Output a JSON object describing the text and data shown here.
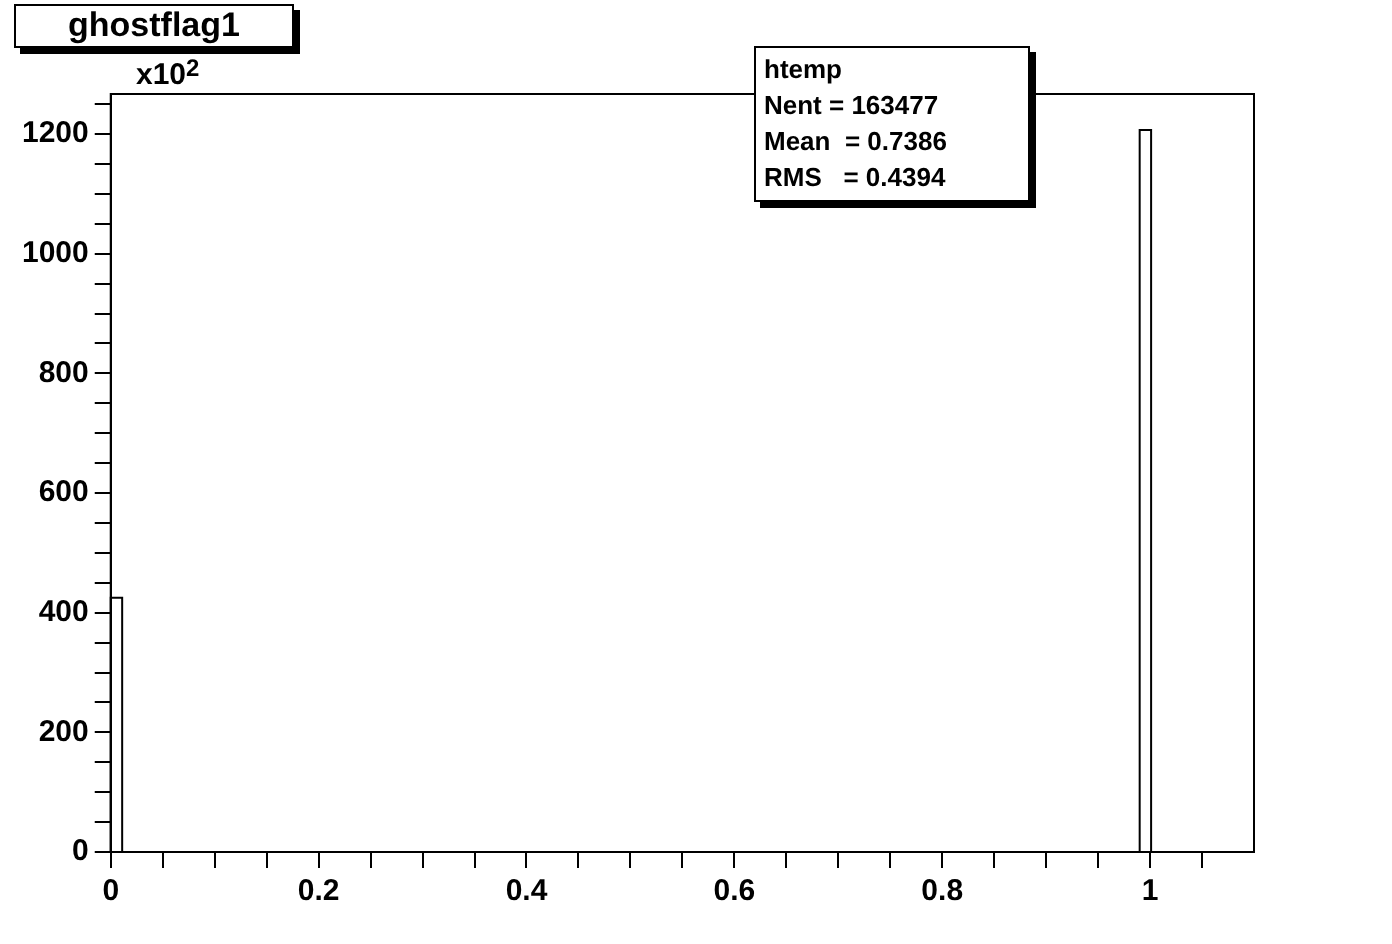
{
  "chart_data": {
    "type": "histogram",
    "title": "ghostflag1",
    "bins": [
      0,
      0.011,
      0.99,
      1.001
    ],
    "values": [
      425,
      0,
      1207
    ],
    "color": "#000000",
    "xlim": [
      0,
      1.1
    ],
    "xticks": [
      0,
      {
        "value": 0.05,
        "label": null
      },
      {
        "value": 0.1,
        "label": null
      },
      {
        "value": 0.15,
        "label": null
      },
      0.2,
      {
        "value": 0.25,
        "label": null
      },
      {
        "value": 0.3,
        "label": null
      },
      {
        "value": 0.35,
        "label": null
      },
      0.4,
      {
        "value": 0.45,
        "label": null
      },
      {
        "value": 0.5,
        "label": null
      },
      {
        "value": 0.55,
        "label": null
      },
      0.6,
      {
        "value": 0.65,
        "label": null
      },
      {
        "value": 0.7,
        "label": null
      },
      {
        "value": 0.75,
        "label": null
      },
      0.8,
      {
        "value": 0.85,
        "label": null
      },
      {
        "value": 0.9,
        "label": null
      },
      {
        "value": 0.95,
        "label": null
      },
      1,
      {
        "value": 1.05,
        "label": null
      }
    ],
    "ylim": [
      0,
      1267
    ],
    "yticks": [
      0,
      {
        "value": 50,
        "label": null
      },
      {
        "value": 100,
        "label": null
      },
      {
        "value": 150,
        "label": null
      },
      200,
      {
        "value": 250,
        "label": null
      },
      {
        "value": 300,
        "label": null
      },
      {
        "value": 350,
        "label": null
      },
      400,
      {
        "value": 450,
        "label": null
      },
      {
        "value": 500,
        "label": null
      },
      {
        "value": 550,
        "label": null
      },
      600,
      {
        "value": 650,
        "label": null
      },
      {
        "value": 700,
        "label": null
      },
      {
        "value": 750,
        "label": null
      },
      800,
      {
        "value": 850,
        "label": null
      },
      {
        "value": 900,
        "label": null
      },
      {
        "value": 950,
        "label": null
      },
      1000,
      {
        "value": 1050,
        "label": null
      },
      {
        "value": 1100,
        "label": null
      },
      {
        "value": 1150,
        "label": null
      },
      1200,
      {
        "value": 1250,
        "label": null
      }
    ],
    "annotations": [
      "x10$^{2}$",
      "htemp",
      "Nent = 163477",
      "Mean  = 0.7386",
      "RMS   = 0.4394"
    ]
  }
}
